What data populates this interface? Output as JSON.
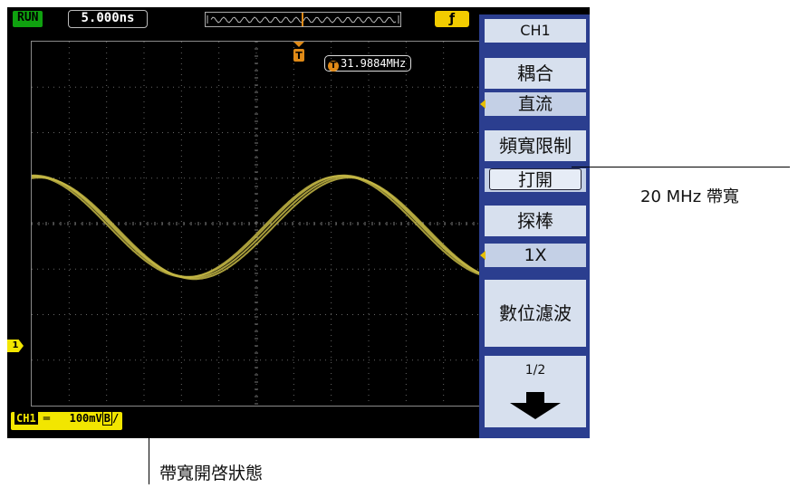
{
  "top_bar": {
    "run_state": "RUN",
    "timebase": "5.000ns",
    "trigger_icon": "rising-edge-icon"
  },
  "display": {
    "frequency_label": "T",
    "frequency_value": "31.9884MHz",
    "trigger_marker_label": "T",
    "ch1_ground_marker": "1"
  },
  "status_bar": {
    "channel": "CH1",
    "coupling_symbol": "═",
    "scale": "100mV",
    "bw_limit_symbol": "B",
    "slope": "/"
  },
  "menu": {
    "title": "CH1",
    "items": [
      {
        "label": "耦合",
        "value": "直流"
      },
      {
        "label": "頻寬限制",
        "value": "打開"
      },
      {
        "label": "探棒",
        "value": "1X"
      },
      {
        "label": "數位濾波"
      }
    ],
    "page": "1/2"
  },
  "callouts": {
    "bandwidth": "20 MHz 帶寬",
    "bw_status": "帶寬開啓狀態"
  },
  "colors": {
    "trace": "#c6b945",
    "menu_bg": "#2b3e8f",
    "menu_item": "#d7e0ee",
    "trigger": "#e08a17",
    "status": "#f2e600"
  }
}
